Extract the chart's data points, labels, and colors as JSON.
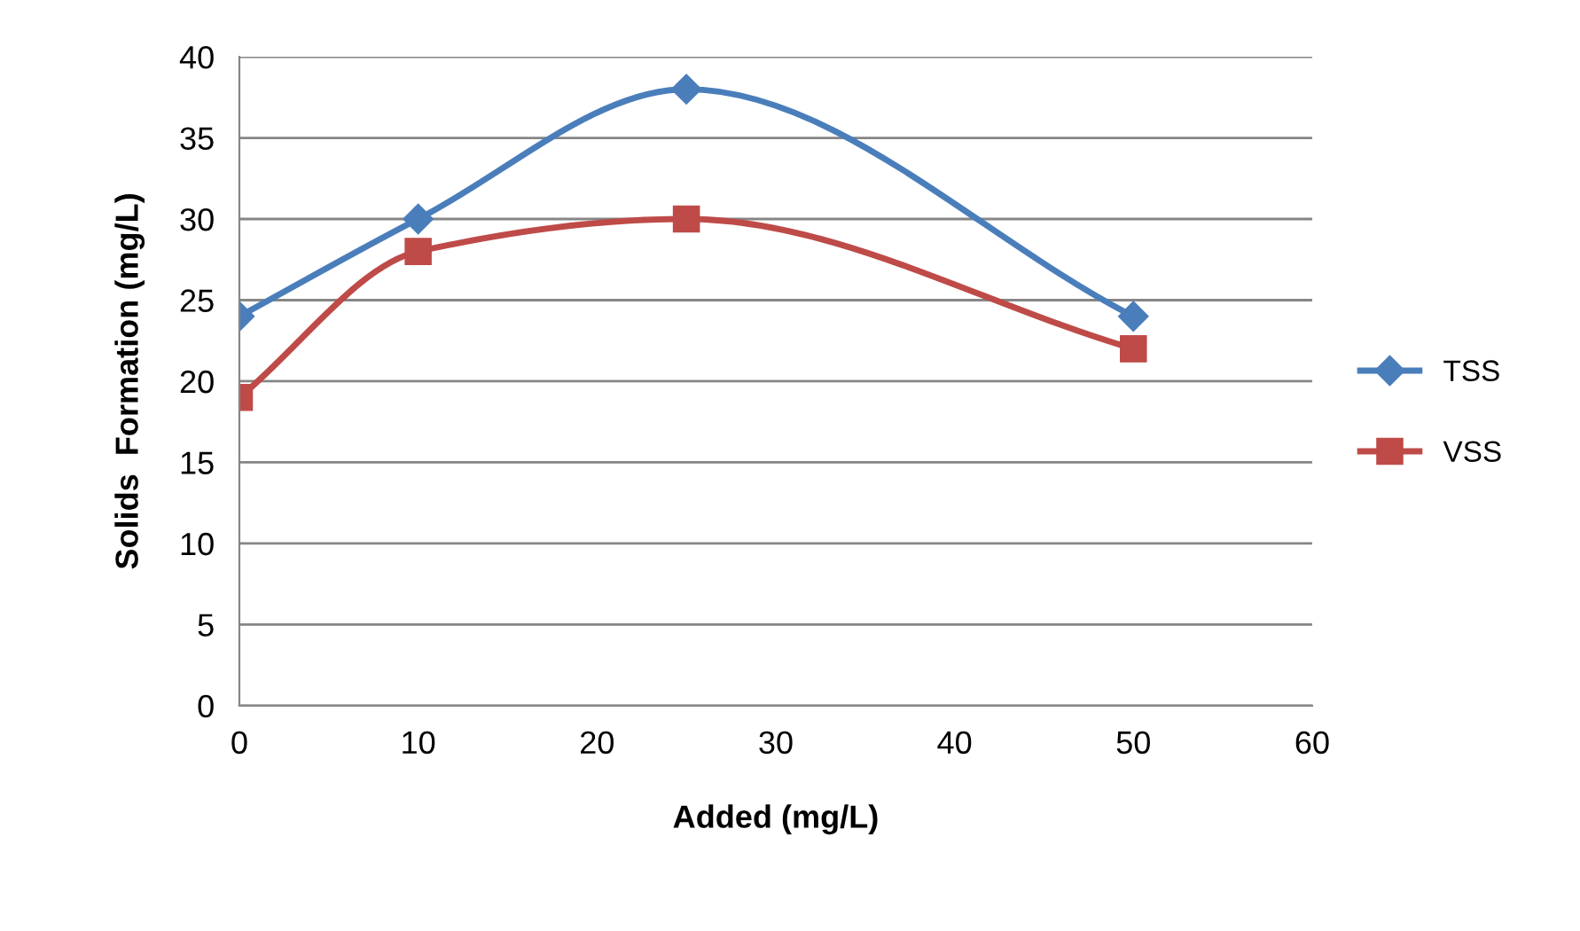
{
  "chart_data": {
    "type": "line",
    "xlabel": "Added (mg/L)",
    "ylabel": "Solids  Formation (mg/L)",
    "xlim": [
      0,
      60
    ],
    "xticks": [
      0,
      10,
      20,
      30,
      40,
      50,
      60
    ],
    "ylim": [
      0,
      40
    ],
    "yticks": [
      0,
      5,
      10,
      15,
      20,
      25,
      30,
      35,
      40
    ],
    "grid": "y",
    "legend": "right",
    "series": [
      {
        "name": "TSS",
        "color": "#4a7ebb",
        "marker": "diamond",
        "x": [
          0,
          10,
          25,
          50
        ],
        "values": [
          24,
          30,
          38,
          24
        ]
      },
      {
        "name": "VSS",
        "color": "#be4b48",
        "marker": "square",
        "x": [
          0,
          10,
          25,
          50
        ],
        "values": [
          19,
          28,
          30,
          22
        ]
      }
    ]
  }
}
